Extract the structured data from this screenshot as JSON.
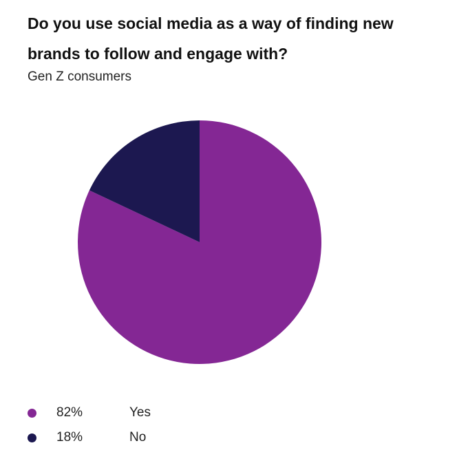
{
  "chart_data": {
    "type": "pie",
    "title": "Do you use social media as a way of finding new brands to follow and engage with?",
    "subtitle": "Gen Z consumers",
    "slices": [
      {
        "label": "Yes",
        "value": 82,
        "value_label": "82%",
        "color": "#842794"
      },
      {
        "label": "No",
        "value": 18,
        "value_label": "18%",
        "color": "#1c1850"
      }
    ],
    "legend_position": "bottom-left"
  }
}
